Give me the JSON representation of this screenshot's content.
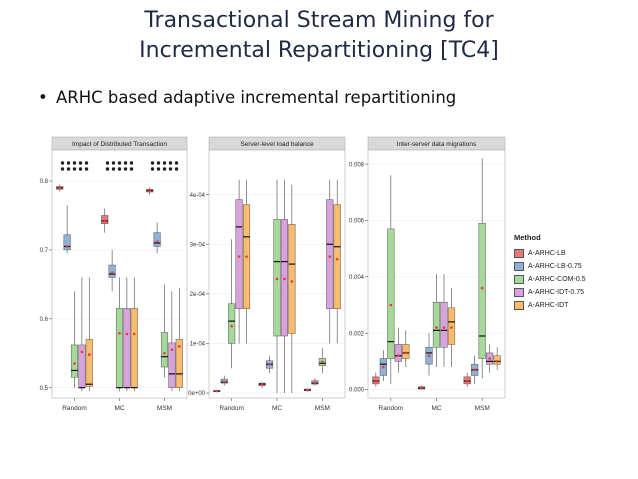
{
  "slide": {
    "title_line1": "Transactional Stream Mining for",
    "title_line2": "Incremental Repartitioning [TC4]",
    "bullet": "ARHC based adaptive incremental repartitioning"
  },
  "legend": {
    "title": "Method",
    "items": [
      {
        "label": "A-ARHC-LB",
        "color": "#e8797a"
      },
      {
        "label": "A-ARHC-LB-0.75",
        "color": "#8fb1d6"
      },
      {
        "label": "A-ARHC-COM-0.5",
        "color": "#a6d89a"
      },
      {
        "label": "A-ARHC-IDT-0.75",
        "color": "#d8a3dc"
      },
      {
        "label": "A-ARHC-IDT",
        "color": "#f7bd6c"
      }
    ]
  },
  "chart_data": [
    {
      "type": "box",
      "title": "Impact of Distributed Transaction",
      "categories": [
        "Random",
        "MC",
        "MSM"
      ],
      "yticks": [
        "0.5",
        "0.6",
        "0.7",
        "0.8"
      ],
      "ylim": [
        0.485,
        0.845
      ],
      "series": [
        {
          "name": "A-ARHC-LB",
          "boxes": [
            [
              0.785,
              0.788,
              0.79,
              0.792,
              0.795
            ],
            [
              0.725,
              0.738,
              0.742,
              0.75,
              0.76
            ],
            [
              0.78,
              0.784,
              0.786,
              0.788,
              0.791
            ]
          ],
          "means": [
            0.79,
            0.742,
            0.786
          ]
        },
        {
          "name": "A-ARHC-LB-0.75",
          "boxes": [
            [
              0.695,
              0.7,
              0.705,
              0.722,
              0.765
            ],
            [
              0.64,
              0.66,
              0.665,
              0.678,
              0.7
            ],
            [
              0.695,
              0.705,
              0.71,
              0.725,
              0.74
            ]
          ],
          "means": [
            0.705,
            0.667,
            0.712
          ]
        },
        {
          "name": "A-ARHC-COM-0.5",
          "boxes": [
            [
              0.5,
              0.515,
              0.525,
              0.562,
              0.64
            ],
            [
              0.495,
              0.5,
              0.5,
              0.615,
              0.66
            ],
            [
              0.515,
              0.53,
              0.545,
              0.58,
              0.65
            ]
          ],
          "means": [
            0.535,
            0.579,
            0.55
          ]
        },
        {
          "name": "A-ARHC-IDT-0.75",
          "boxes": [
            [
              0.495,
              0.5,
              0.5,
              0.562,
              0.66
            ],
            [
              0.495,
              0.5,
              0.5,
              0.615,
              0.66
            ],
            [
              0.495,
              0.5,
              0.52,
              0.565,
              0.64
            ]
          ],
          "means": [
            0.552,
            0.578,
            0.555
          ]
        },
        {
          "name": "A-ARHC-IDT",
          "boxes": [
            [
              0.495,
              0.502,
              0.505,
              0.57,
              0.66
            ],
            [
              0.495,
              0.5,
              0.5,
              0.615,
              0.66
            ],
            [
              0.495,
              0.5,
              0.52,
              0.57,
              0.645
            ]
          ],
          "means": [
            0.548,
            0.578,
            0.56
          ]
        }
      ],
      "dotrow": true
    },
    {
      "type": "box",
      "title": "Server-level load balance",
      "categories": [
        "Random",
        "MC",
        "MSM"
      ],
      "yticks": [
        "0e+00",
        "1e-04",
        "2e-04",
        "3e-04",
        "4e-04"
      ],
      "ylim": [
        -1e-05,
        0.00049
      ],
      "series": [
        {
          "name": "A-ARHC-LB",
          "boxes": [
            [
              2e-06,
              3e-06,
              4e-06,
              5e-06,
              6e-06
            ],
            [
              1e-05,
              1.5e-05,
              1.8e-05,
              2e-05,
              2.2e-05
            ],
            [
              3e-06,
              5e-06,
              6e-06,
              8e-06,
              9e-06
            ]
          ],
          "means": [
            4e-06,
            1.7e-05,
            6e-06
          ]
        },
        {
          "name": "A-ARHC-LB-0.75",
          "boxes": [
            [
              1.5e-05,
              2e-05,
              2.2e-05,
              2.8e-05,
              3.5e-05
            ],
            [
              4e-05,
              5e-05,
              5.8e-05,
              6.5e-05,
              7.5e-05
            ],
            [
              1.5e-05,
              1.8e-05,
              2e-05,
              2.5e-05,
              3e-05
            ]
          ],
          "means": [
            2.2e-05,
            5.8e-05,
            2.1e-05
          ]
        },
        {
          "name": "A-ARHC-COM-0.5",
          "boxes": [
            [
              5e-05,
              0.0001,
              0.000145,
              0.00018,
              0.00031
            ],
            [
              0.0,
              0.000115,
              0.000265,
              0.00035,
              0.00043
            ],
            [
              4e-05,
              5.5e-05,
              6e-05,
              7e-05,
              9e-05
            ]
          ],
          "means": [
            0.000135,
            0.00023,
            6.3e-05
          ]
        },
        {
          "name": "A-ARHC-IDT-0.75",
          "boxes": [
            [
              0.0001,
              0.00017,
              0.000335,
              0.00039,
              0.00043
            ],
            [
              0.0,
              0.000115,
              0.000265,
              0.00035,
              0.00043
            ],
            [
              0.0001,
              0.00017,
              0.0003,
              0.00039,
              0.00043
            ]
          ],
          "means": [
            0.000275,
            0.00023,
            0.000275
          ]
        },
        {
          "name": "A-ARHC-IDT",
          "boxes": [
            [
              0.0001,
              0.00017,
              0.000315,
              0.00038,
              0.00043
            ],
            [
              0.0,
              0.00012,
              0.00026,
              0.00034,
              0.00042
            ],
            [
              0.0001,
              0.00017,
              0.000295,
              0.00038,
              0.00043
            ]
          ],
          "means": [
            0.000275,
            0.000225,
            0.00027
          ]
        }
      ],
      "dotrow": false
    },
    {
      "type": "box",
      "title": "Inter-server data migrations",
      "categories": [
        "Random",
        "MC",
        "MSM"
      ],
      "yticks": [
        "0.000",
        "0.002",
        "0.004",
        "0.006",
        "0.008"
      ],
      "ylim": [
        -0.0003,
        0.0085
      ],
      "series": [
        {
          "name": "A-ARHC-LB",
          "boxes": [
            [
              0.0001,
              0.0002,
              0.0003,
              0.00045,
              0.0006
            ],
            [
              0.0,
              2e-05,
              5e-05,
              0.0001,
              0.00015
            ],
            [
              0.0001,
              0.0002,
              0.0003,
              0.00045,
              0.0006
            ]
          ],
          "means": [
            0.0003,
            6e-05,
            0.0003
          ]
        },
        {
          "name": "A-ARHC-LB-0.75",
          "boxes": [
            [
              0.0003,
              0.0005,
              0.0009,
              0.0011,
              0.0014
            ],
            [
              0.0005,
              0.0009,
              0.0013,
              0.0015,
              0.002
            ],
            [
              0.0002,
              0.0005,
              0.0007,
              0.0009,
              0.0012
            ]
          ],
          "means": [
            0.0008,
            0.0012,
            0.0007
          ]
        },
        {
          "name": "A-ARHC-COM-0.5",
          "boxes": [
            [
              0.0002,
              0.0011,
              0.0017,
              0.0057,
              0.0076
            ],
            [
              0.0008,
              0.0015,
              0.0021,
              0.0031,
              0.0041
            ],
            [
              0.0004,
              0.0011,
              0.0019,
              0.0059,
              0.0082
            ]
          ],
          "means": [
            0.003,
            0.0022,
            0.0036
          ]
        },
        {
          "name": "A-ARHC-IDT-0.75",
          "boxes": [
            [
              0.0006,
              0.001,
              0.0012,
              0.0016,
              0.0022
            ],
            [
              0.0008,
              0.0015,
              0.0021,
              0.0031,
              0.0041
            ],
            [
              0.0006,
              0.0009,
              0.001,
              0.0013,
              0.0016
            ]
          ],
          "means": [
            0.0012,
            0.0022,
            0.0011
          ]
        },
        {
          "name": "A-ARHC-IDT",
          "boxes": [
            [
              0.0008,
              0.0011,
              0.0013,
              0.0016,
              0.0021
            ],
            [
              0.0008,
              0.0016,
              0.0024,
              0.0029,
              0.0036
            ],
            [
              0.0007,
              0.0009,
              0.001,
              0.0012,
              0.0015
            ]
          ],
          "means": [
            0.0013,
            0.0022,
            0.001
          ]
        }
      ],
      "dotrow": false
    }
  ]
}
